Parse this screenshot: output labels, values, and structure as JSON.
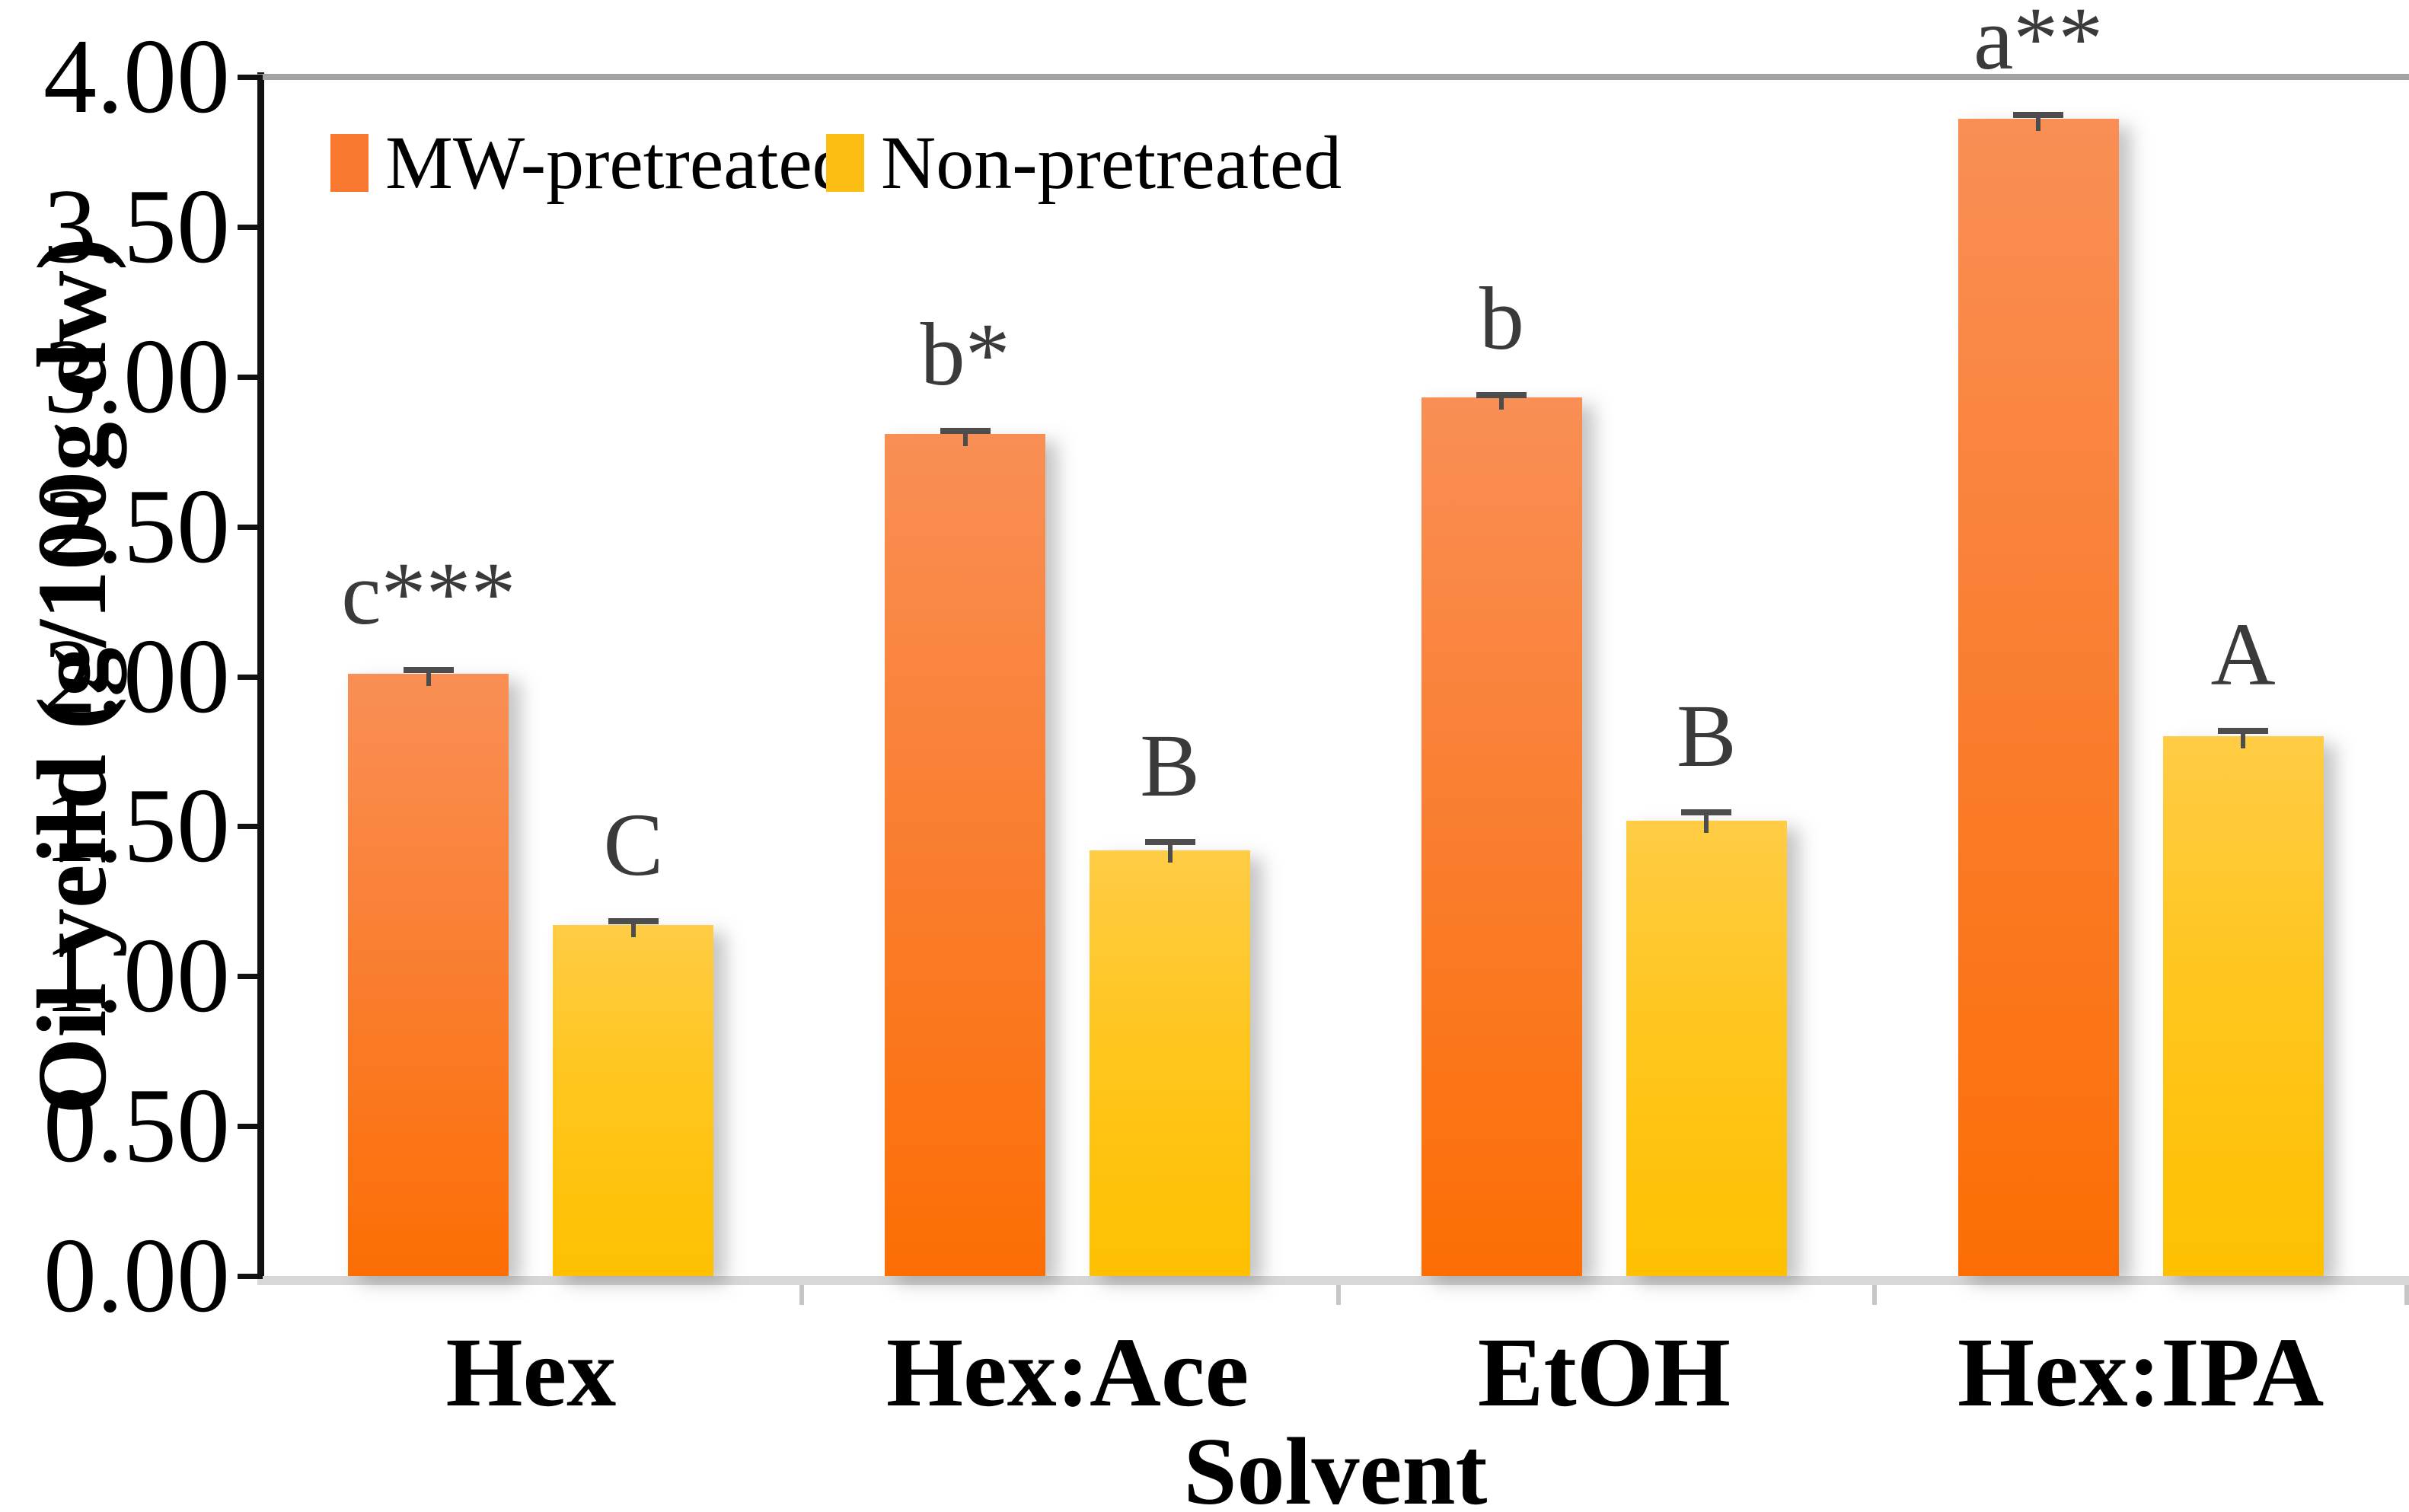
{
  "chart_data": {
    "type": "bar",
    "title": "",
    "xlabel": "Solvent",
    "ylabel": "Oil yeild (g/100g dw)",
    "categories": [
      "Hex",
      "Hex:Ace",
      "EtOH",
      "Hex:IPA"
    ],
    "series": [
      {
        "name": "MW-pretreated",
        "values": [
          2.01,
          2.81,
          2.93,
          3.86
        ],
        "errors": [
          0.015,
          0.012,
          0.012,
          0.015
        ],
        "bar_labels": [
          "c***",
          "b*",
          "b",
          "a**"
        ],
        "color_top": "#F98F55",
        "color_mid": "#FA7F33",
        "color_bottom": "#FC6E04",
        "legend_color": "#F7782E"
      },
      {
        "name": "Non-pretreated",
        "values": [
          1.17,
          1.42,
          1.52,
          1.8
        ],
        "errors": [
          0.015,
          0.03,
          0.03,
          0.02
        ],
        "bar_labels": [
          "C",
          "B",
          "B",
          "A"
        ],
        "color_top": "#FFCC45",
        "color_mid": "#FFC61E",
        "color_bottom": "#FEC000",
        "legend_color": "#FCBE13"
      }
    ],
    "ylim": [
      0,
      4
    ],
    "ytick_step": 0.5,
    "ytick_labels": [
      "0.00",
      "0.50",
      "1.00",
      "1.50",
      "2.00",
      "2.50",
      "3.00",
      "3.50",
      "4.00"
    ],
    "legend_position": "top-left",
    "grid": false,
    "error_bar_color": "#4d4d4d",
    "axis_color": "#111111",
    "baseline_color": "#d7d7d7",
    "topline_color": "#a3a3a3"
  }
}
